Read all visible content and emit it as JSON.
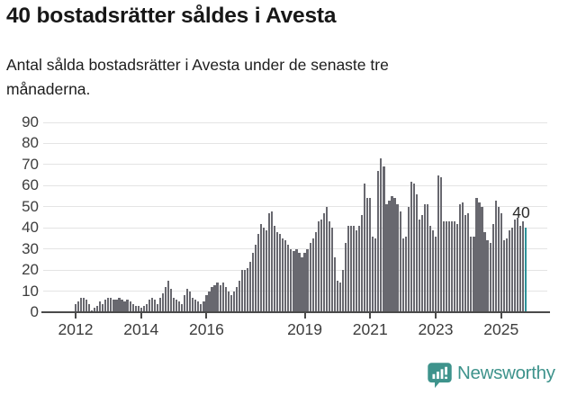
{
  "header": {
    "title": "40 bostadsrätter såldes i Avesta",
    "subtitle": "Antal sålda bostadsrätter i Avesta under de senaste tre månaderna.",
    "subtitle_lines": [
      "Antal sålda bostadsrätter i Avesta under de senaste tre",
      "månaderna."
    ]
  },
  "chart_data": {
    "type": "bar",
    "title": "Antal sålda bostadsrätter i Avesta under de senaste tre månaderna",
    "frequency": "monthly",
    "x_start": "2012-01",
    "x_end": "2025-10",
    "values": [
      4,
      5,
      7,
      7,
      6,
      4,
      1,
      2,
      3,
      5,
      4,
      6,
      7,
      7,
      6,
      6,
      7,
      6,
      5,
      6,
      5,
      4,
      3,
      3,
      2,
      3,
      4,
      6,
      7,
      6,
      4,
      7,
      9,
      12,
      15,
      11,
      7,
      6,
      5,
      4,
      8,
      11,
      10,
      7,
      6,
      5,
      4,
      5,
      8,
      10,
      12,
      13,
      14,
      13,
      14,
      12,
      10,
      8,
      10,
      12,
      15,
      20,
      20,
      21,
      24,
      28,
      32,
      37,
      42,
      40,
      39,
      47,
      48,
      41,
      38,
      37,
      35,
      34,
      32,
      30,
      29,
      30,
      28,
      26,
      28,
      30,
      33,
      35,
      38,
      43,
      44,
      47,
      50,
      43,
      40,
      26,
      15,
      14,
      20,
      33,
      41,
      41,
      41,
      39,
      41,
      46,
      61,
      54,
      54,
      36,
      35,
      67,
      73,
      69,
      51,
      53,
      55,
      54,
      51,
      48,
      35,
      36,
      50,
      62,
      61,
      56,
      44,
      46,
      51,
      51,
      41,
      39,
      36,
      65,
      64,
      43,
      43,
      43,
      43,
      43,
      42,
      51,
      52,
      46,
      47,
      36,
      36,
      54,
      52,
      50,
      38,
      34,
      33,
      42,
      53,
      50,
      47,
      34,
      35,
      39,
      40,
      44,
      45,
      41,
      43,
      40
    ],
    "ylim": [
      0,
      90
    ],
    "y_ticks": [
      0,
      10,
      20,
      30,
      40,
      50,
      60,
      70,
      80,
      90
    ],
    "x_ticks": [
      {
        "label": "2012",
        "month_index": 0
      },
      {
        "label": "2014",
        "month_index": 24
      },
      {
        "label": "2016",
        "month_index": 48
      },
      {
        "label": "2019",
        "month_index": 84
      },
      {
        "label": "2021",
        "month_index": 108
      },
      {
        "label": "2023",
        "month_index": 132
      },
      {
        "label": "2025",
        "month_index": 156
      }
    ],
    "grid": true,
    "legend": "none",
    "highlight_index": 165,
    "highlight_value_label": "40",
    "bar_color": "#68686f",
    "highlight_color": "#2e939a",
    "gridline_color": "#e4e4e4",
    "axis_color": "#4a4a4a",
    "tick_label_color": "#3d3d3d"
  },
  "footer": {
    "logo_text": "Newsworthy",
    "logo_color": "#3e938c"
  }
}
